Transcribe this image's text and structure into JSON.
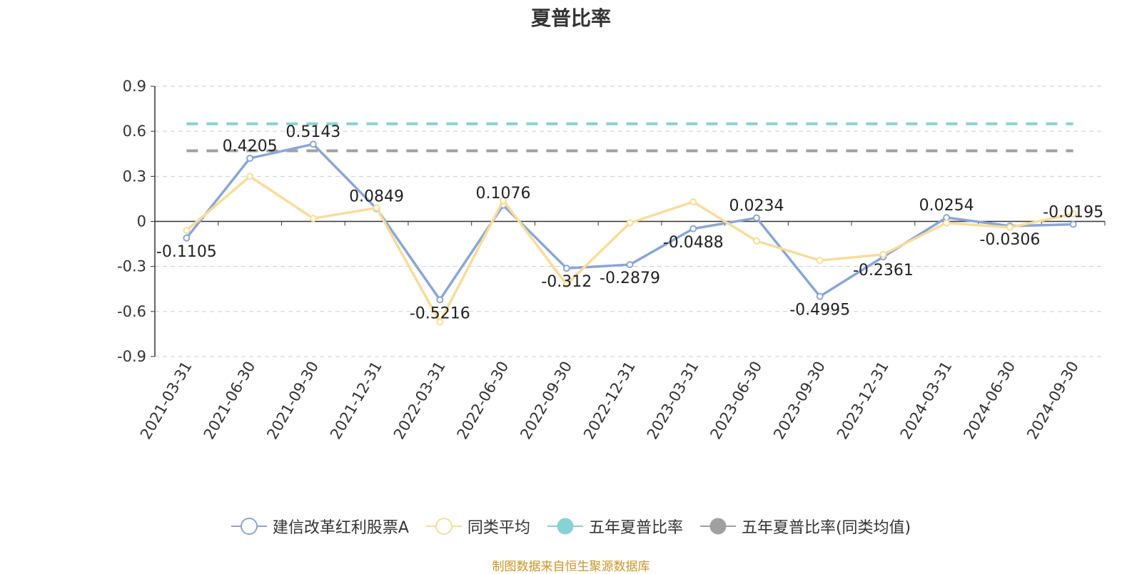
{
  "chart_data": {
    "type": "line",
    "title": "夏普比率",
    "categories": [
      "2021-03-31",
      "2021-06-30",
      "2021-09-30",
      "2021-12-31",
      "2022-03-31",
      "2022-06-30",
      "2022-09-30",
      "2022-12-31",
      "2023-03-31",
      "2023-06-30",
      "2023-09-30",
      "2023-12-31",
      "2024-03-31",
      "2024-06-30",
      "2024-09-30"
    ],
    "y_ticks": [
      "0.9",
      "0.6",
      "0.3",
      "0",
      "-0.3",
      "-0.6",
      "-0.9"
    ],
    "ylim": [
      -0.9,
      0.9
    ],
    "grid": true,
    "legend_position": "bottom",
    "series": [
      {
        "name": "建信改革红利股票A",
        "color": "#8aa6d6",
        "values": [
          -0.1105,
          0.4205,
          0.5143,
          0.0849,
          -0.5216,
          0.1076,
          -0.312,
          -0.2879,
          -0.0488,
          0.0234,
          -0.4995,
          -0.2361,
          0.0254,
          -0.0306,
          -0.0195
        ],
        "labels": [
          "-0.1105",
          "0.4205",
          "0.5143",
          "0.0849",
          "-0.5216",
          "0.1076",
          "-0.312",
          "-0.2879",
          "-0.0488",
          "0.0234",
          "-0.4995",
          "-0.2361",
          "0.0254",
          "-0.0306",
          "-0.0195"
        ]
      },
      {
        "name": "同类平均",
        "color": "#f9dc9a",
        "values": [
          -0.06,
          0.3,
          0.02,
          0.09,
          -0.67,
          0.14,
          -0.42,
          -0.01,
          0.13,
          -0.13,
          -0.26,
          -0.22,
          -0.01,
          -0.04,
          0.05
        ]
      },
      {
        "name": "五年夏普比率",
        "color": "#88d1d4",
        "constant": 0.65
      },
      {
        "name": "五年夏普比率(同类均值)",
        "color": "#a0a0a0",
        "constant": 0.47
      }
    ]
  },
  "source_note": "制图数据来自恒生聚源数据库"
}
